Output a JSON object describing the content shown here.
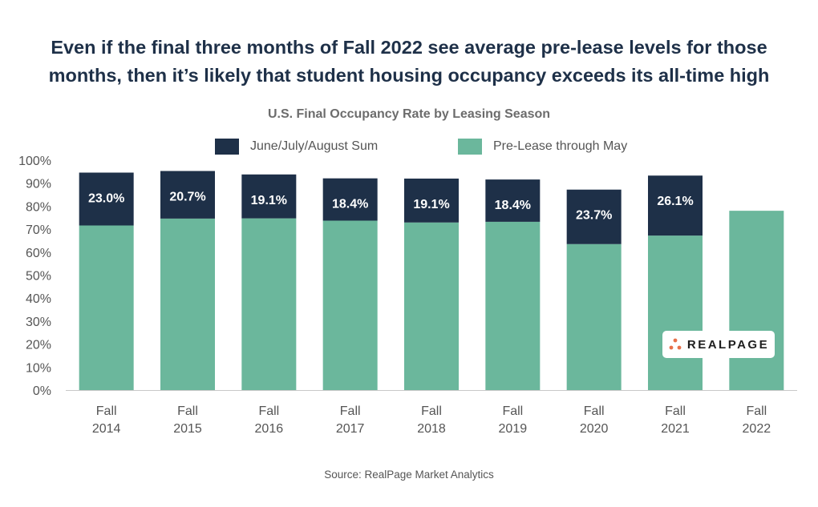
{
  "headline": {
    "line1": "Even if the final three months of Fall 2022 see average pre-lease levels for those",
    "line2": "months, then it’s likely that student housing occupancy exceeds its all-time high"
  },
  "logo_text": "REALPAGE",
  "source": "Source: RealPage Market Analytics",
  "colors": {
    "summer": "#1e3048",
    "prelease": "#6bb79c",
    "axis_text": "#555555"
  },
  "chart_data": {
    "type": "bar",
    "stacked": true,
    "title": "U.S. Final Occupancy Rate by Leasing Season",
    "categories": [
      [
        "Fall",
        "2014"
      ],
      [
        "Fall",
        "2015"
      ],
      [
        "Fall",
        "2016"
      ],
      [
        "Fall",
        "2017"
      ],
      [
        "Fall",
        "2018"
      ],
      [
        "Fall",
        "2019"
      ],
      [
        "Fall",
        "2020"
      ],
      [
        "Fall",
        "2021"
      ],
      [
        "Fall",
        "2022"
      ]
    ],
    "series": [
      {
        "name": "Pre-Lease through May",
        "color": "#6bb79c",
        "values": [
          71.6,
          74.6,
          74.7,
          73.7,
          72.9,
          73.2,
          63.5,
          67.2,
          78.0
        ]
      },
      {
        "name": "June/July/August Sum",
        "color": "#1e3048",
        "values": [
          23.0,
          20.7,
          19.1,
          18.4,
          19.1,
          18.4,
          23.7,
          26.1,
          null
        ],
        "labels": [
          "23.0%",
          "20.7%",
          "19.1%",
          "18.4%",
          "19.1%",
          "18.4%",
          "23.7%",
          "26.1%",
          ""
        ]
      }
    ],
    "legend_order": [
      "June/July/August Sum",
      "Pre-Lease through May"
    ],
    "ylim": [
      0,
      100
    ],
    "yticks": [
      "0%",
      "10%",
      "20%",
      "30%",
      "40%",
      "50%",
      "60%",
      "70%",
      "80%",
      "90%",
      "100%"
    ],
    "legend_position": "top",
    "grid": false
  }
}
